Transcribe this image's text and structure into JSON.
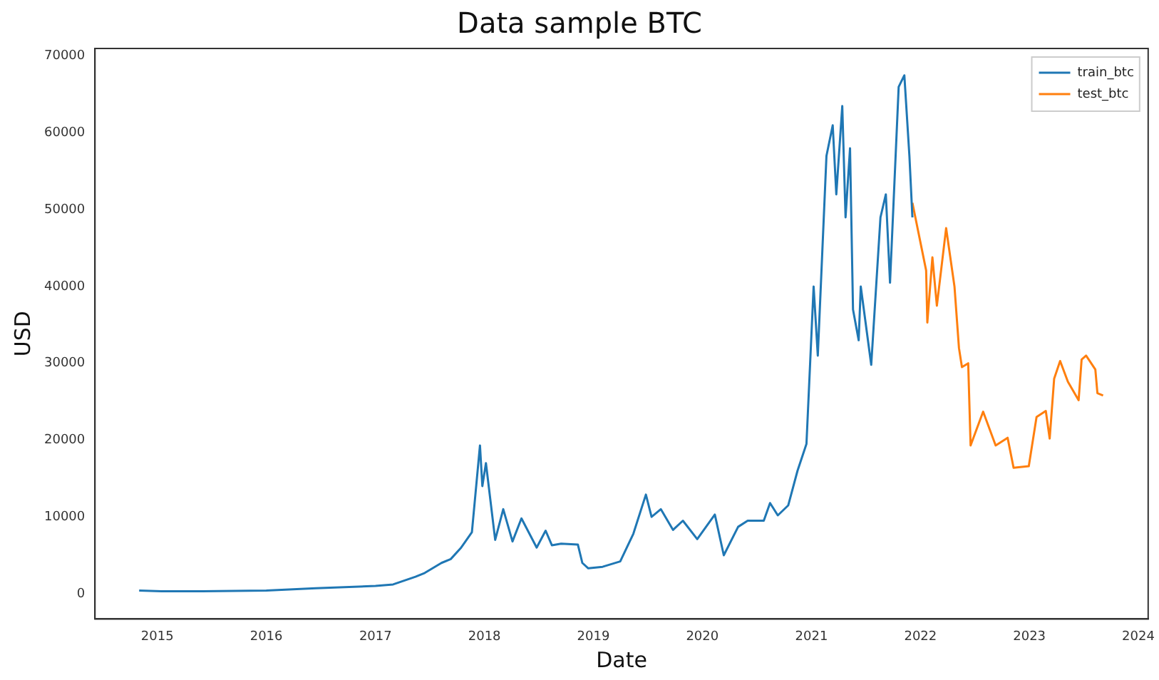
{
  "chart_data": {
    "type": "line",
    "title": "Data sample BTC",
    "xlabel": "Date",
    "ylabel": "USD",
    "xlim": [
      "2014-06-06",
      "2024-02-03"
    ],
    "xticks": [
      "2015",
      "2016",
      "2017",
      "2018",
      "2019",
      "2020",
      "2021",
      "2022",
      "2023",
      "2024"
    ],
    "ylim": [
      -3300,
      71000
    ],
    "yticks": [
      0,
      10000,
      20000,
      30000,
      40000,
      50000,
      60000,
      70000
    ],
    "grid": false,
    "legend": "top right",
    "marker": "none",
    "line_style": "solid",
    "series": [
      {
        "name": "train_btc",
        "color": "#1f77b4",
        "x": [
          "2014-11-01",
          "2015-01-15",
          "2015-06-01",
          "2016-01-01",
          "2016-06-15",
          "2017-01-01",
          "2017-03-01",
          "2017-05-15",
          "2017-06-15",
          "2017-08-10",
          "2017-09-10",
          "2017-10-15",
          "2017-11-20",
          "2017-12-17",
          "2017-12-25",
          "2018-01-06",
          "2018-02-06",
          "2018-03-05",
          "2018-04-05",
          "2018-05-05",
          "2018-06-25",
          "2018-07-25",
          "2018-08-15",
          "2018-09-15",
          "2018-11-10",
          "2018-11-25",
          "2018-12-15",
          "2019-02-01",
          "2019-04-01",
          "2019-05-15",
          "2019-06-26",
          "2019-07-15",
          "2019-08-15",
          "2019-09-25",
          "2019-10-28",
          "2019-12-15",
          "2020-02-12",
          "2020-03-13",
          "2020-04-30",
          "2020-06-01",
          "2020-07-25",
          "2020-08-15",
          "2020-09-10",
          "2020-10-15",
          "2020-11-15",
          "2020-12-15",
          "2021-01-08",
          "2021-01-22",
          "2021-02-20",
          "2021-03-13",
          "2021-03-25",
          "2021-04-14",
          "2021-04-25",
          "2021-05-10",
          "2021-05-20",
          "2021-06-08",
          "2021-06-15",
          "2021-07-20",
          "2021-08-20",
          "2021-09-07",
          "2021-09-21",
          "2021-10-20",
          "2021-11-08",
          "2021-11-25",
          "2021-12-05"
        ],
        "values": [
          400,
          300,
          300,
          400,
          700,
          1000,
          1200,
          2200,
          2700,
          4000,
          4500,
          6000,
          8000,
          19300,
          14000,
          17000,
          7000,
          11000,
          6800,
          9800,
          6000,
          8200,
          6300,
          6500,
          6400,
          4000,
          3300,
          3500,
          4200,
          7800,
          12900,
          10000,
          11000,
          8300,
          9500,
          7100,
          10300,
          5000,
          8700,
          9500,
          9500,
          11800,
          10200,
          11500,
          16000,
          19500,
          40000,
          31000,
          57000,
          61000,
          52000,
          63500,
          49000,
          58000,
          37000,
          33000,
          40000,
          29800,
          49000,
          52000,
          40500,
          66000,
          67500,
          57000,
          49000
        ]
      },
      {
        "name": "test_btc",
        "color": "#ff7f0e",
        "x": [
          "2021-12-05",
          "2022-01-20",
          "2022-01-24",
          "2022-02-10",
          "2022-02-25",
          "2022-03-28",
          "2022-04-25",
          "2022-05-10",
          "2022-05-20",
          "2022-06-10",
          "2022-06-18",
          "2022-07-30",
          "2022-09-10",
          "2022-10-20",
          "2022-11-09",
          "2022-12-30",
          "2023-01-25",
          "2023-02-25",
          "2023-03-10",
          "2023-03-25",
          "2023-04-14",
          "2023-05-10",
          "2023-06-15",
          "2023-06-25",
          "2023-07-10",
          "2023-08-10",
          "2023-08-17",
          "2023-09-05"
        ],
        "values": [
          50900,
          42100,
          35300,
          43800,
          37500,
          47600,
          40000,
          32000,
          29500,
          30000,
          19300,
          23700,
          19300,
          20300,
          16400,
          16600,
          23000,
          23800,
          20200,
          28000,
          30300,
          27600,
          25200,
          30500,
          31000,
          29200,
          26100,
          25800
        ]
      }
    ]
  }
}
